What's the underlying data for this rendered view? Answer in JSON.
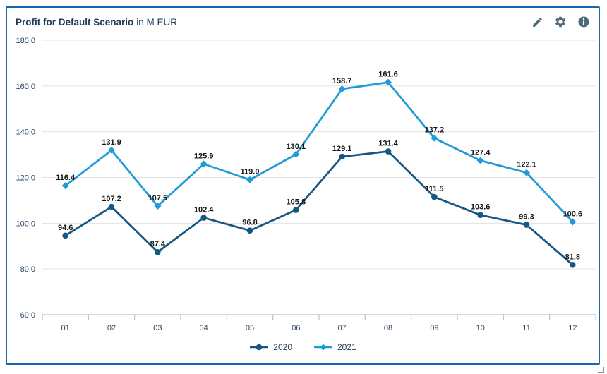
{
  "panel": {
    "title": "Profit for Default Scenario",
    "title_suffix": "in M EUR"
  },
  "toolbar": {
    "edit_icon": "pencil",
    "settings_icon": "gear",
    "info_icon": "info-circle",
    "icon_color": "#4d6b7d"
  },
  "chart_data": {
    "type": "line",
    "title": "Profit for Default Scenario in M EUR",
    "categories": [
      "01",
      "02",
      "03",
      "04",
      "05",
      "06",
      "07",
      "08",
      "09",
      "10",
      "11",
      "12"
    ],
    "series": [
      {
        "name": "2020",
        "color": "#165782",
        "marker": "circle",
        "values": [
          94.6,
          107.2,
          87.4,
          102.4,
          96.8,
          105.8,
          129.1,
          131.4,
          111.5,
          103.6,
          99.3,
          81.8
        ]
      },
      {
        "name": "2021",
        "color": "#219bd8",
        "marker": "diamond",
        "values": [
          116.4,
          131.9,
          107.5,
          125.9,
          119.0,
          130.1,
          158.7,
          161.6,
          137.2,
          127.4,
          122.1,
          100.6
        ]
      }
    ],
    "ylim": [
      60,
      180
    ],
    "ytick_step": 20,
    "grid": true,
    "data_labels": true,
    "legend_position": "bottom",
    "xlabel": "",
    "ylabel": ""
  },
  "style": {
    "grid_color": "#e3e3e3",
    "axis_color": "#aec3da",
    "tick_label_color": "#2a4563",
    "data_label_color": "#141414",
    "panel_border_color": "#1669ad",
    "resize_handle_color": "#8f8f8f"
  }
}
